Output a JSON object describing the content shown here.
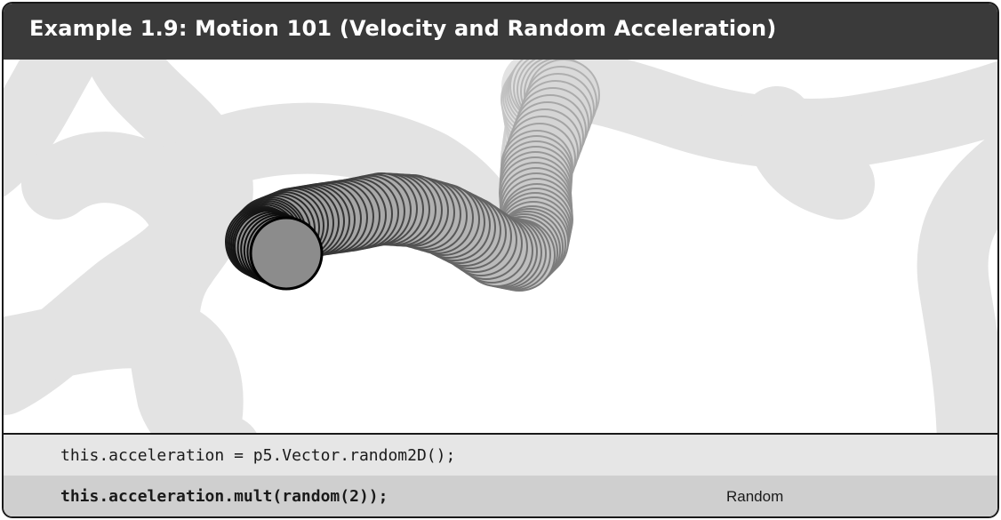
{
  "header": {
    "title": "Example 1.9: Motion 101 (Velocity and Random Acceleration)"
  },
  "code": {
    "lines": [
      {
        "text": "this.acceleration = p5.Vector.random2D();",
        "highlighted": false
      },
      {
        "text": "this.acceleration.mult(random(2));",
        "highlighted": true,
        "annotation": "Random"
      }
    ]
  },
  "colors": {
    "title_bar": "#3a3a3a",
    "trail_old": "#e3e3e3",
    "ball_fill": "#8c8c8c",
    "ball_stroke": "#000000"
  }
}
